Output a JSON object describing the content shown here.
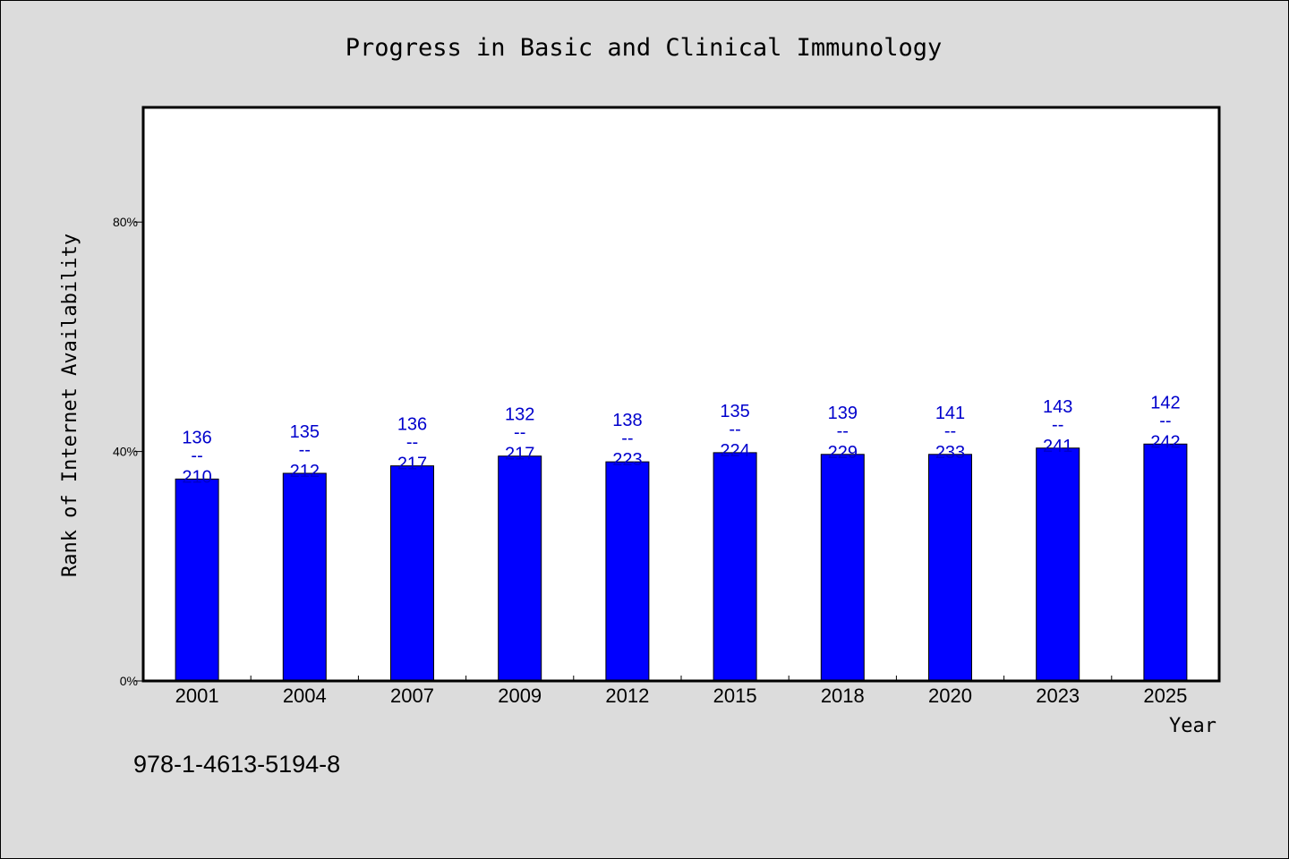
{
  "chart_data": {
    "type": "bar",
    "title": "Progress in Basic and Clinical Immunology",
    "xlabel": "Year",
    "ylabel": "Rank of Internet Availability",
    "ylim": [
      0,
      100
    ],
    "yticks": [
      {
        "value": 0,
        "label": "0%"
      },
      {
        "value": 40,
        "label": "40%"
      },
      {
        "value": 80,
        "label": "80%"
      }
    ],
    "categories": [
      "2001",
      "2004",
      "2007",
      "2009",
      "2012",
      "2015",
      "2018",
      "2020",
      "2023",
      "2025"
    ],
    "values": [
      35.2,
      36.2,
      37.5,
      39.2,
      38.2,
      39.8,
      39.5,
      39.5,
      40.6,
      41.3
    ],
    "labels": [
      {
        "top": "136",
        "sep": "--",
        "bottom": "210"
      },
      {
        "top": "135",
        "sep": "--",
        "bottom": "212"
      },
      {
        "top": "136",
        "sep": "--",
        "bottom": "217"
      },
      {
        "top": "132",
        "sep": "--",
        "bottom": "217"
      },
      {
        "top": "138",
        "sep": "--",
        "bottom": "223"
      },
      {
        "top": "135",
        "sep": "--",
        "bottom": "224"
      },
      {
        "top": "139",
        "sep": "--",
        "bottom": "229"
      },
      {
        "top": "141",
        "sep": "--",
        "bottom": "233"
      },
      {
        "top": "143",
        "sep": "--",
        "bottom": "241"
      },
      {
        "top": "142",
        "sep": "--",
        "bottom": "242"
      }
    ],
    "bar_color": "#0000ff",
    "label_color": "#0000cc",
    "grid": false,
    "legend": "none"
  },
  "footer": {
    "isbn": "978-1-4613-5194-8"
  },
  "colors": {
    "background": "#dcdcdc",
    "plot_background": "#ffffff"
  }
}
